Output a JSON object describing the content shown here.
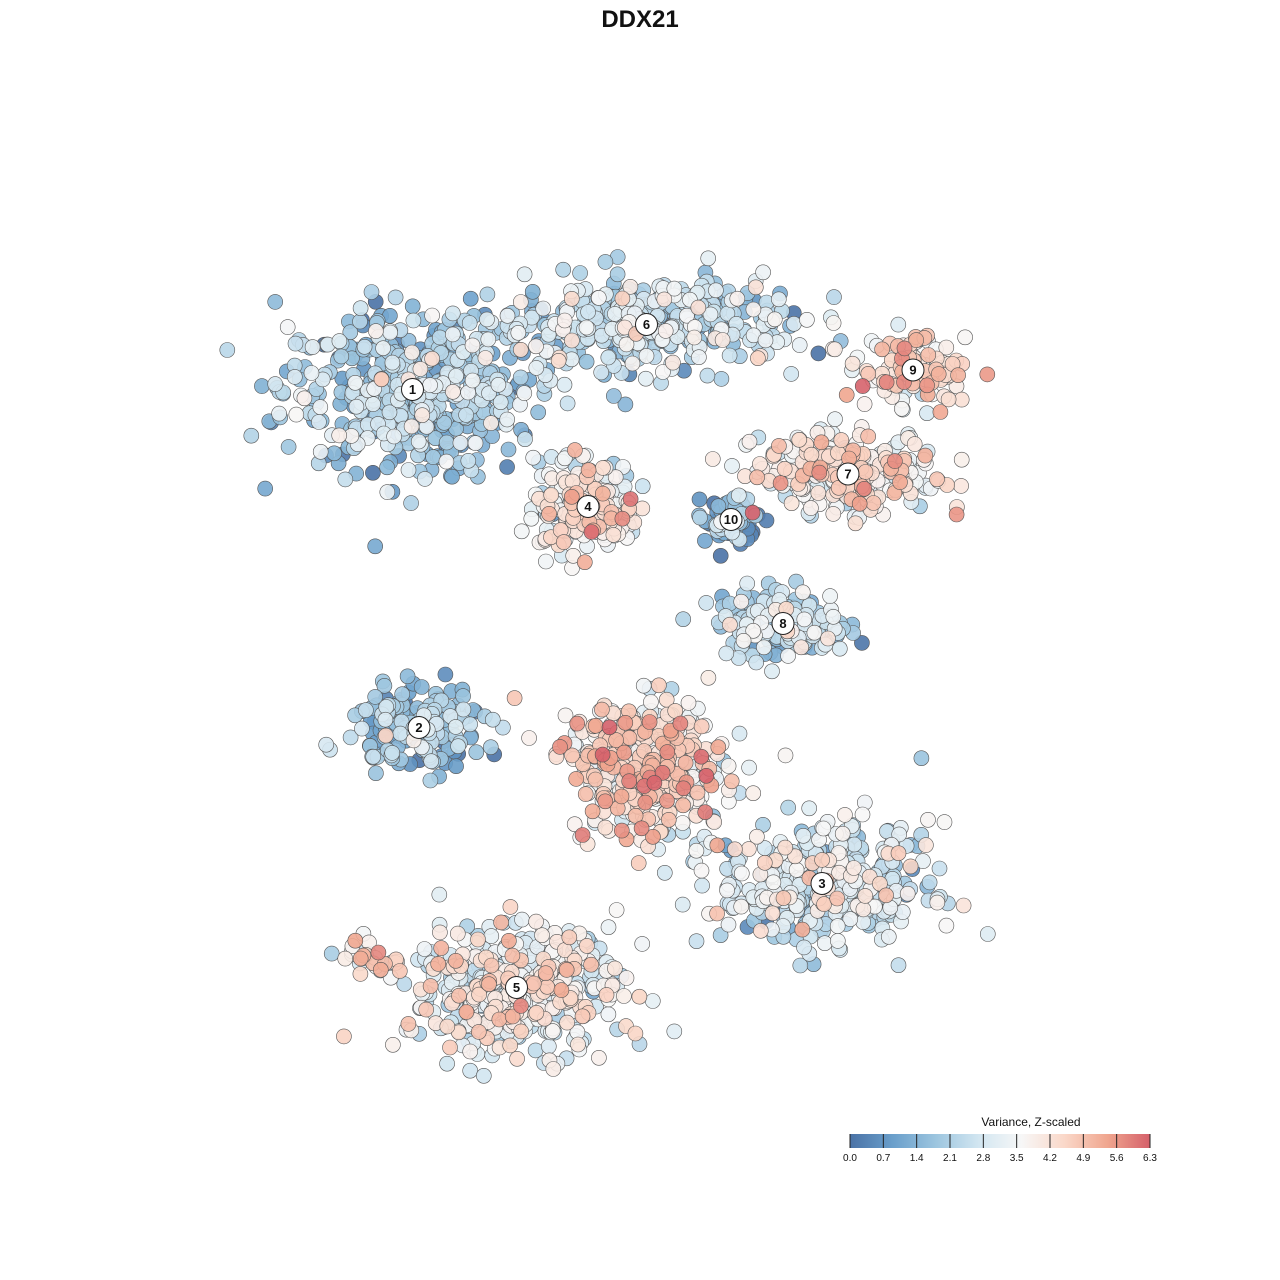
{
  "chart_data": {
    "type": "scatter",
    "title": "DDX21",
    "xlabel": "",
    "ylabel": "",
    "grid": false,
    "color_scale": {
      "title": "Variance, Z-scaled",
      "min": 0.0,
      "max": 6.3,
      "ticks": [
        "0.0",
        "0.7",
        "1.4",
        "2.1",
        "2.8",
        "3.5",
        "4.2",
        "4.9",
        "5.6",
        "6.3"
      ],
      "colors": [
        "#4a72a6",
        "#6a9fcb",
        "#9cc5df",
        "#d2e6f1",
        "#f7f7f7",
        "#fad8c9",
        "#f0a68f",
        "#d5606a"
      ]
    },
    "legend_placement": "bottom-right",
    "clusters": [
      {
        "label": "1",
        "x": -17.5,
        "y": 18.5,
        "spread": [
          10,
          6
        ],
        "mean": 1.9,
        "n": 520
      },
      {
        "label": "6",
        "x": 0.5,
        "y": 23.5,
        "spread": [
          11,
          3.5
        ],
        "mean": 2.3,
        "n": 420
      },
      {
        "label": "9",
        "x": 21.0,
        "y": 20.0,
        "spread": [
          4,
          2.5
        ],
        "mean": 3.9,
        "n": 110
      },
      {
        "label": "4",
        "x": -4.0,
        "y": 9.5,
        "spread": [
          4,
          3.5
        ],
        "mean": 3.6,
        "n": 240
      },
      {
        "label": "10",
        "x": 7.0,
        "y": 8.5,
        "spread": [
          2,
          2
        ],
        "mean": 1.2,
        "n": 80
      },
      {
        "label": "7",
        "x": 16.0,
        "y": 12.0,
        "spread": [
          7,
          3
        ],
        "mean": 3.7,
        "n": 260
      },
      {
        "label": "8",
        "x": 11.0,
        "y": 0.5,
        "spread": [
          5,
          2.5
        ],
        "mean": 2.2,
        "n": 180
      },
      {
        "label": "2",
        "x": -17.0,
        "y": -7.5,
        "spread": [
          5,
          3
        ],
        "mean": 1.6,
        "n": 200
      },
      {
        "label": "3",
        "x": 14.0,
        "y": -19.5,
        "spread": [
          8,
          4.5
        ],
        "mean": 2.6,
        "n": 420
      },
      {
        "label": "5",
        "x": -9.5,
        "y": -27.5,
        "spread": [
          8,
          5
        ],
        "mean": 3.3,
        "n": 480
      },
      {
        "label": "",
        "x": 0.5,
        "y": -10.5,
        "spread": [
          6,
          5
        ],
        "mean": 4.0,
        "n": 420
      },
      {
        "label": "",
        "x": -21.0,
        "y": -25.0,
        "spread": [
          3,
          1.5
        ],
        "mean": 4.0,
        "n": 25
      }
    ]
  }
}
